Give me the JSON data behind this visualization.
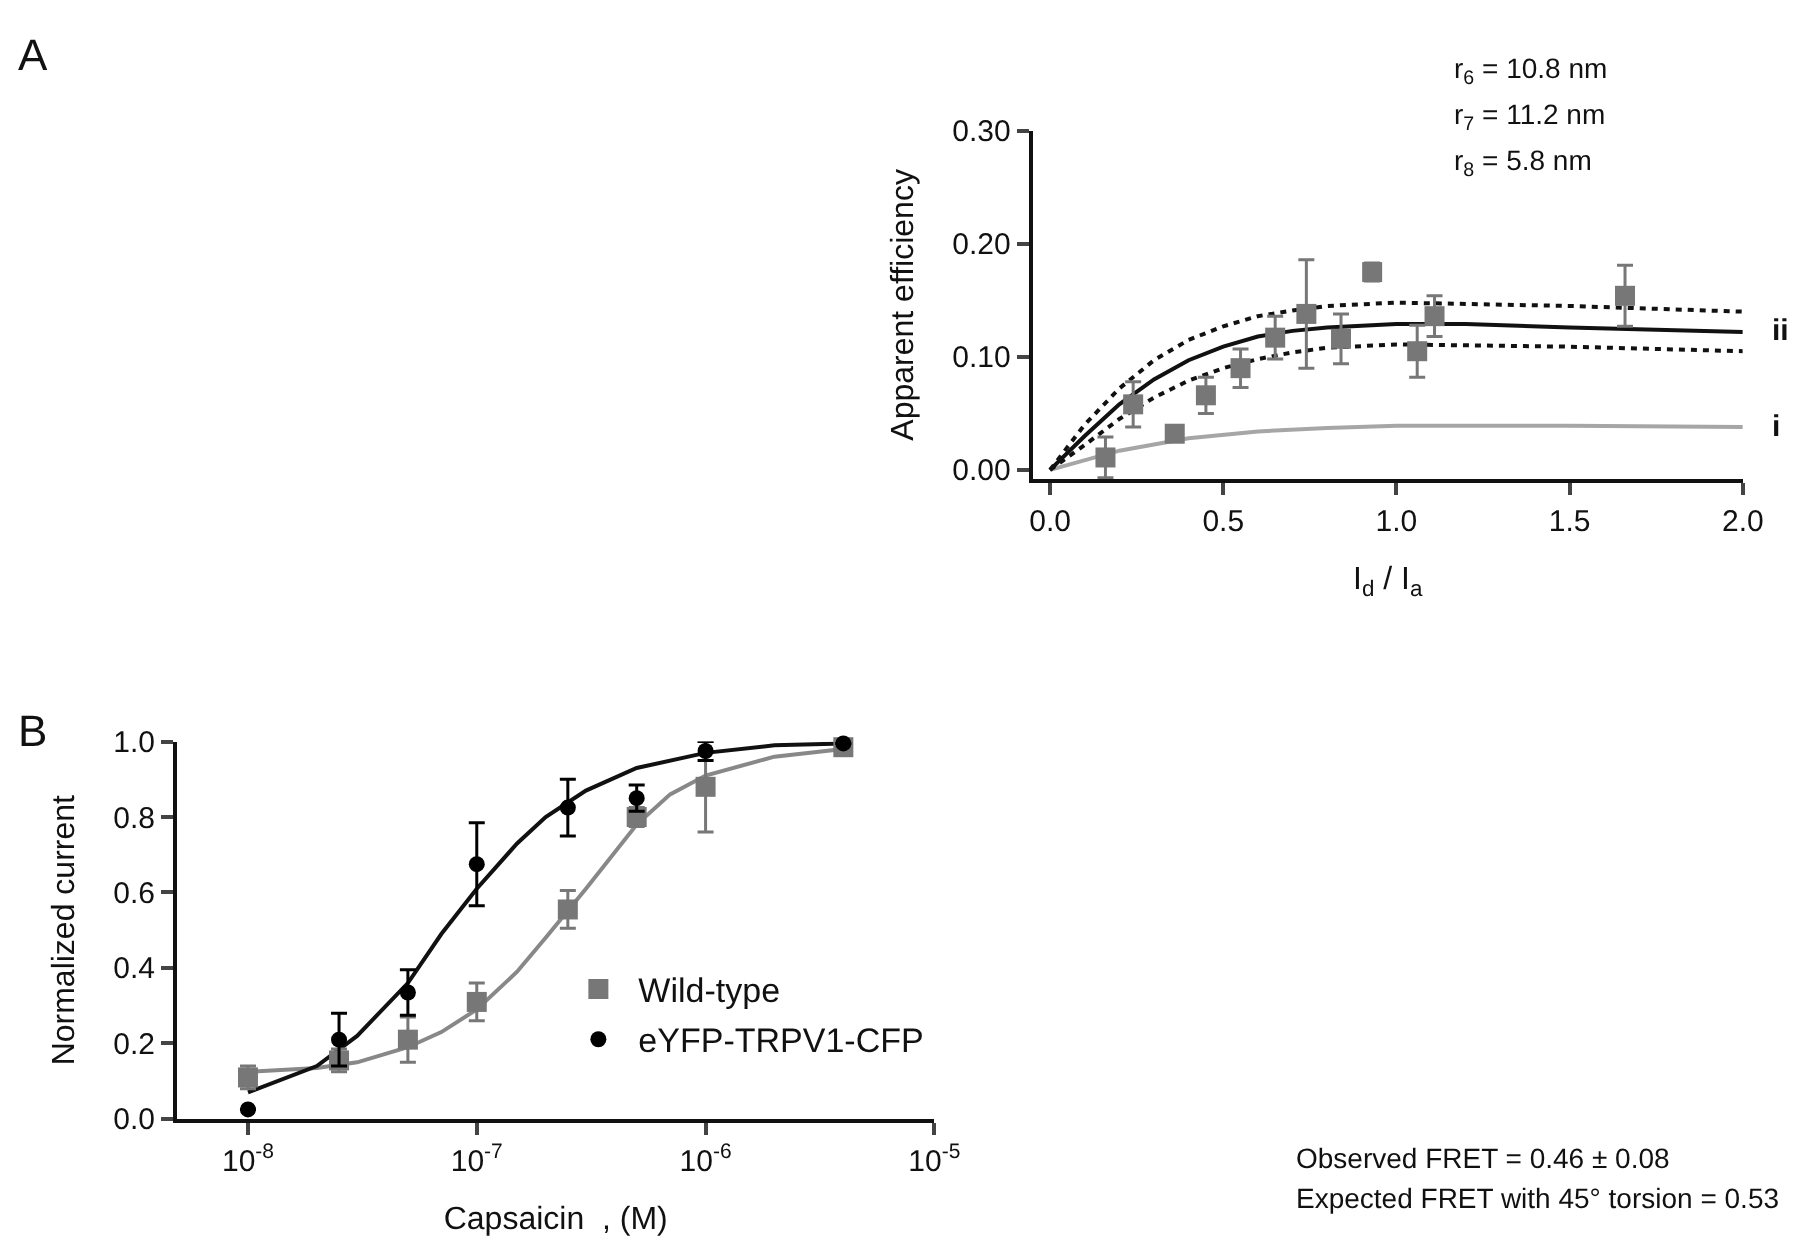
{
  "chart_data": [
    {
      "type": "scatter",
      "xlabel": "I$_{d}$ / I$_{a}$",
      "ylabel": "Apparent efficiency",
      "xlim": [
        -0.05,
        2.0
      ],
      "ylim": [
        -0.008,
        0.3
      ],
      "xticks": [
        {
          "value": 0,
          "label": "0.0"
        },
        {
          "value": 0.5,
          "label": "0.5"
        },
        {
          "value": 1,
          "label": "1.0"
        },
        {
          "value": 1.5,
          "label": "1.5"
        },
        {
          "value": 2,
          "label": "2.0"
        }
      ],
      "yticks": [
        {
          "value": 0,
          "label": "0.00"
        },
        {
          "value": 0.1,
          "label": "0.10"
        },
        {
          "value": 0.2,
          "label": "0.20"
        },
        {
          "value": 0.3,
          "label": "0.30"
        }
      ],
      "grid": false,
      "legend": false,
      "annotations": [
        "A",
        "r$_{6}$ = 10.8 nm",
        "r$_{7}$ = 11.2 nm",
        "r$_{8}$ = 5.8 nm"
      ],
      "series": [
        {
          "type": "line",
          "name": "i",
          "color": "#a6a6a6",
          "line_style": "solid",
          "marker": "none",
          "x": [
            0,
            0.2,
            0.4,
            0.6,
            0.8,
            1.0,
            1.5,
            2.0
          ],
          "values": [
            0,
            0.017,
            0.028,
            0.034,
            0.037,
            0.039,
            0.039,
            0.038
          ]
        },
        {
          "type": "line",
          "name": "ii",
          "color": "#111111",
          "line_style": "solid",
          "marker": "none",
          "x": [
            0,
            0.1,
            0.2,
            0.3,
            0.4,
            0.5,
            0.6,
            0.7,
            0.8,
            1.0,
            1.2,
            1.5,
            2.0
          ],
          "values": [
            0,
            0.03,
            0.058,
            0.08,
            0.097,
            0.109,
            0.118,
            0.123,
            0.126,
            0.129,
            0.129,
            0.126,
            0.122
          ]
        },
        {
          "type": "line",
          "color": "#111111",
          "line_style": "dotted",
          "marker": "none",
          "x": [
            0,
            0.1,
            0.2,
            0.3,
            0.4,
            0.5,
            0.6,
            0.7,
            0.8,
            1.0,
            1.5,
            2.0
          ],
          "values": [
            0,
            0.04,
            0.072,
            0.097,
            0.115,
            0.127,
            0.136,
            0.141,
            0.145,
            0.148,
            0.145,
            0.14
          ]
        },
        {
          "type": "line",
          "color": "#111111",
          "line_style": "dotted",
          "marker": "none",
          "x": [
            0,
            0.1,
            0.2,
            0.3,
            0.4,
            0.5,
            0.6,
            0.7,
            0.8,
            1.0,
            1.5,
            2.0
          ],
          "values": [
            0,
            0.022,
            0.045,
            0.064,
            0.079,
            0.09,
            0.098,
            0.104,
            0.108,
            0.111,
            0.109,
            0.105
          ]
        },
        {
          "color": "#777777",
          "marker": "square",
          "x": [
            0.16,
            0.24,
            0.36,
            0.45,
            0.55,
            0.65,
            0.74,
            0.84,
            0.93,
            1.06,
            1.11,
            1.66
          ],
          "values": [
            0.011,
            0.058,
            0.032,
            0.066,
            0.09,
            0.117,
            0.138,
            0.116,
            0.175,
            0.105,
            0.136,
            0.154
          ],
          "errors": [
            0.018,
            0.02,
            null,
            0.016,
            0.017,
            0.019,
            0.048,
            0.022,
            0.008,
            0.023,
            0.018,
            0.027
          ]
        }
      ]
    },
    {
      "type": "scatter",
      "xlabel": "Capsaicin  , (M)",
      "ylabel": "Normalized current",
      "log": "x",
      "xlim": [
        4.9e-09,
        1e-05
      ],
      "ylim": [
        0,
        1.0
      ],
      "xticks": [
        {
          "value": 1e-08,
          "label": "10$^{-8}$"
        },
        {
          "value": 1e-07,
          "label": "10$^{-7}$"
        },
        {
          "value": 1e-06,
          "label": "10$^{-6}$"
        },
        {
          "value": 1e-05,
          "label": "10$^{-5}$"
        }
      ],
      "yticks": [
        {
          "value": 0,
          "label": "0.0"
        },
        {
          "value": 0.2,
          "label": "0.2"
        },
        {
          "value": 0.4,
          "label": "0.4"
        },
        {
          "value": 0.6,
          "label": "0.6"
        },
        {
          "value": 0.8,
          "label": "0.8"
        },
        {
          "value": 1.0,
          "label": "1.0"
        }
      ],
      "grid": false,
      "legend": "bottom right",
      "annotations": [
        "B",
        "Observed FRET = 0.46 ± 0.08",
        "Expected FRET with 45° torsion = 0.53"
      ],
      "series": [
        {
          "type": "line",
          "color": "#888888",
          "line_style": "solid",
          "marker": "none",
          "x": [
            1e-08,
            2e-08,
            3e-08,
            5e-08,
            7e-08,
            1e-07,
            1.5e-07,
            2e-07,
            3e-07,
            5e-07,
            7e-07,
            1e-06,
            2e-06,
            4e-06
          ],
          "values": [
            0.125,
            0.135,
            0.15,
            0.19,
            0.23,
            0.29,
            0.39,
            0.48,
            0.61,
            0.78,
            0.86,
            0.91,
            0.96,
            0.98
          ]
        },
        {
          "type": "line",
          "color": "#111111",
          "line_style": "solid",
          "marker": "none",
          "x": [
            1e-08,
            2e-08,
            3e-08,
            5e-08,
            7e-08,
            1e-07,
            1.5e-07,
            2e-07,
            3e-07,
            5e-07,
            1e-06,
            2e-06,
            4e-06
          ],
          "values": [
            0.07,
            0.14,
            0.22,
            0.36,
            0.49,
            0.61,
            0.73,
            0.8,
            0.87,
            0.93,
            0.97,
            0.99,
            0.995
          ]
        },
        {
          "name": "Wild-type",
          "color": "#777777",
          "marker": "square",
          "x": [
            1e-08,
            2.5e-08,
            5e-08,
            1e-07,
            2.5e-07,
            5e-07,
            1e-06,
            4e-06
          ],
          "values": [
            0.11,
            0.155,
            0.21,
            0.31,
            0.555,
            0.8,
            0.88,
            0.985
          ],
          "errors": [
            0.03,
            0.03,
            0.06,
            0.05,
            0.05,
            0.025,
            0.12,
            null
          ]
        },
        {
          "name": "eYFP-TRPV1-CFP",
          "color": "#000000",
          "marker": "circle",
          "x": [
            1e-08,
            2.5e-08,
            5e-08,
            1e-07,
            2.5e-07,
            5e-07,
            1e-06,
            4e-06
          ],
          "values": [
            0.025,
            0.21,
            0.335,
            0.675,
            0.825,
            0.85,
            0.975,
            0.995
          ],
          "errors": [
            null,
            0.07,
            0.06,
            0.11,
            0.075,
            0.035,
            0.025,
            null
          ]
        }
      ]
    }
  ]
}
